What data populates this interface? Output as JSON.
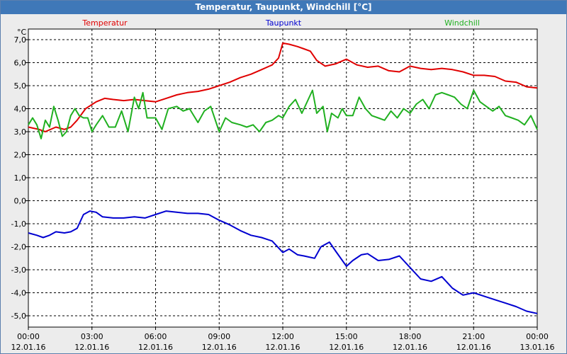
{
  "window": {
    "title": "Temperatur, Taupunkt, Windchill [°C]"
  },
  "chart_data": {
    "type": "line",
    "title": "Temperatur, Taupunkt, Windchill [°C]",
    "ylabel": "°C",
    "xlabel": "",
    "ylim": [
      -5.5,
      7.5
    ],
    "grid": true,
    "legend_placement": "top",
    "x_ticks": [
      {
        "time": "00:00",
        "date": "12.01.16",
        "hour": 0
      },
      {
        "time": "03:00",
        "date": "12.01.16",
        "hour": 3
      },
      {
        "time": "06:00",
        "date": "12.01.16",
        "hour": 6
      },
      {
        "time": "09:00",
        "date": "12.01.16",
        "hour": 9
      },
      {
        "time": "12:00",
        "date": "12.01.16",
        "hour": 12
      },
      {
        "time": "15:00",
        "date": "12.01.16",
        "hour": 15
      },
      {
        "time": "18:00",
        "date": "12.01.16",
        "hour": 18
      },
      {
        "time": "21:00",
        "date": "12.01.16",
        "hour": 21
      },
      {
        "time": "00:00",
        "date": "13.01.16",
        "hour": 24
      }
    ],
    "y_ticks": [
      {
        "label": "7,0",
        "value": 7
      },
      {
        "label": "6,0",
        "value": 6
      },
      {
        "label": "5,0",
        "value": 5
      },
      {
        "label": "4,0",
        "value": 4
      },
      {
        "label": "3,0",
        "value": 3
      },
      {
        "label": "2,0",
        "value": 2
      },
      {
        "label": "1,0",
        "value": 1
      },
      {
        "label": "0,0",
        "value": 0
      },
      {
        "label": "-1,0",
        "value": -1
      },
      {
        "label": "-2,0",
        "value": -2
      },
      {
        "label": "-3,0",
        "value": -3
      },
      {
        "label": "-4,0",
        "value": -4
      },
      {
        "label": "-5,0",
        "value": -5
      }
    ],
    "series": [
      {
        "name": "Temperatur",
        "color": "#e00000",
        "points": [
          [
            0,
            3.2
          ],
          [
            0.5,
            3.1
          ],
          [
            0.8,
            3.0
          ],
          [
            1.3,
            3.2
          ],
          [
            1.7,
            3.1
          ],
          [
            2.0,
            3.2
          ],
          [
            2.3,
            3.5
          ],
          [
            2.7,
            4.0
          ],
          [
            3.2,
            4.3
          ],
          [
            3.6,
            4.45
          ],
          [
            4.0,
            4.4
          ],
          [
            4.5,
            4.35
          ],
          [
            5.0,
            4.4
          ],
          [
            5.5,
            4.35
          ],
          [
            6.0,
            4.3
          ],
          [
            6.5,
            4.45
          ],
          [
            7.0,
            4.6
          ],
          [
            7.5,
            4.7
          ],
          [
            8.0,
            4.75
          ],
          [
            8.5,
            4.85
          ],
          [
            9.0,
            5.0
          ],
          [
            9.5,
            5.15
          ],
          [
            10.0,
            5.35
          ],
          [
            10.5,
            5.5
          ],
          [
            11.0,
            5.7
          ],
          [
            11.5,
            5.9
          ],
          [
            11.8,
            6.2
          ],
          [
            12.0,
            6.85
          ],
          [
            12.3,
            6.8
          ],
          [
            12.7,
            6.7
          ],
          [
            13.0,
            6.6
          ],
          [
            13.3,
            6.5
          ],
          [
            13.6,
            6.1
          ],
          [
            14.0,
            5.85
          ],
          [
            14.5,
            5.95
          ],
          [
            15.0,
            6.15
          ],
          [
            15.5,
            5.9
          ],
          [
            16.0,
            5.8
          ],
          [
            16.5,
            5.85
          ],
          [
            17.0,
            5.65
          ],
          [
            17.5,
            5.6
          ],
          [
            18.0,
            5.85
          ],
          [
            18.5,
            5.75
          ],
          [
            19.0,
            5.7
          ],
          [
            19.5,
            5.75
          ],
          [
            20.0,
            5.7
          ],
          [
            20.5,
            5.6
          ],
          [
            21.0,
            5.45
          ],
          [
            21.5,
            5.45
          ],
          [
            22.0,
            5.4
          ],
          [
            22.5,
            5.2
          ],
          [
            23.0,
            5.15
          ],
          [
            23.5,
            4.95
          ],
          [
            24.0,
            4.9
          ]
        ]
      },
      {
        "name": "Taupunkt",
        "color": "#0000d0",
        "points": [
          [
            0,
            -1.4
          ],
          [
            0.4,
            -1.5
          ],
          [
            0.7,
            -1.6
          ],
          [
            1.0,
            -1.5
          ],
          [
            1.3,
            -1.35
          ],
          [
            1.7,
            -1.4
          ],
          [
            2.0,
            -1.35
          ],
          [
            2.3,
            -1.2
          ],
          [
            2.6,
            -0.6
          ],
          [
            2.9,
            -0.45
          ],
          [
            3.2,
            -0.5
          ],
          [
            3.5,
            -0.7
          ],
          [
            4.0,
            -0.75
          ],
          [
            4.5,
            -0.75
          ],
          [
            5.0,
            -0.7
          ],
          [
            5.5,
            -0.75
          ],
          [
            6.0,
            -0.6
          ],
          [
            6.5,
            -0.45
          ],
          [
            7.0,
            -0.5
          ],
          [
            7.5,
            -0.55
          ],
          [
            8.0,
            -0.55
          ],
          [
            8.5,
            -0.6
          ],
          [
            9.0,
            -0.85
          ],
          [
            9.5,
            -1.05
          ],
          [
            10.0,
            -1.3
          ],
          [
            10.5,
            -1.5
          ],
          [
            11.0,
            -1.6
          ],
          [
            11.5,
            -1.75
          ],
          [
            12.0,
            -2.25
          ],
          [
            12.3,
            -2.1
          ],
          [
            12.7,
            -2.35
          ],
          [
            13.0,
            -2.4
          ],
          [
            13.5,
            -2.5
          ],
          [
            13.8,
            -2.0
          ],
          [
            14.2,
            -1.8
          ],
          [
            14.5,
            -2.2
          ],
          [
            15.0,
            -2.85
          ],
          [
            15.3,
            -2.6
          ],
          [
            15.7,
            -2.35
          ],
          [
            16.0,
            -2.3
          ],
          [
            16.5,
            -2.6
          ],
          [
            17.0,
            -2.55
          ],
          [
            17.5,
            -2.4
          ],
          [
            18.0,
            -2.9
          ],
          [
            18.5,
            -3.4
          ],
          [
            19.0,
            -3.5
          ],
          [
            19.5,
            -3.3
          ],
          [
            20.0,
            -3.8
          ],
          [
            20.5,
            -4.1
          ],
          [
            21.0,
            -4.0
          ],
          [
            21.5,
            -4.15
          ],
          [
            22.0,
            -4.3
          ],
          [
            22.5,
            -4.45
          ],
          [
            23.0,
            -4.6
          ],
          [
            23.5,
            -4.8
          ],
          [
            24.0,
            -4.9
          ]
        ]
      },
      {
        "name": "Windchill",
        "color": "#20b020",
        "points": [
          [
            0,
            3.3
          ],
          [
            0.2,
            3.6
          ],
          [
            0.4,
            3.3
          ],
          [
            0.6,
            2.7
          ],
          [
            0.8,
            3.5
          ],
          [
            1.0,
            3.2
          ],
          [
            1.2,
            4.1
          ],
          [
            1.4,
            3.5
          ],
          [
            1.6,
            2.8
          ],
          [
            1.8,
            3.0
          ],
          [
            2.0,
            3.7
          ],
          [
            2.2,
            4.0
          ],
          [
            2.4,
            3.7
          ],
          [
            2.6,
            3.6
          ],
          [
            2.8,
            3.6
          ],
          [
            3.0,
            3.0
          ],
          [
            3.2,
            3.3
          ],
          [
            3.5,
            3.7
          ],
          [
            3.8,
            3.2
          ],
          [
            4.1,
            3.2
          ],
          [
            4.4,
            3.9
          ],
          [
            4.7,
            3.0
          ],
          [
            5.0,
            4.5
          ],
          [
            5.2,
            4.0
          ],
          [
            5.4,
            4.7
          ],
          [
            5.6,
            3.6
          ],
          [
            6.0,
            3.6
          ],
          [
            6.3,
            3.1
          ],
          [
            6.6,
            4.0
          ],
          [
            7.0,
            4.1
          ],
          [
            7.3,
            3.9
          ],
          [
            7.6,
            4.0
          ],
          [
            8.0,
            3.4
          ],
          [
            8.3,
            3.9
          ],
          [
            8.6,
            4.1
          ],
          [
            9.0,
            3.0
          ],
          [
            9.3,
            3.6
          ],
          [
            9.6,
            3.4
          ],
          [
            10.0,
            3.3
          ],
          [
            10.3,
            3.2
          ],
          [
            10.6,
            3.3
          ],
          [
            10.9,
            3.0
          ],
          [
            11.2,
            3.4
          ],
          [
            11.5,
            3.5
          ],
          [
            11.8,
            3.7
          ],
          [
            12.0,
            3.6
          ],
          [
            12.3,
            4.1
          ],
          [
            12.6,
            4.4
          ],
          [
            12.9,
            3.8
          ],
          [
            13.1,
            4.2
          ],
          [
            13.4,
            4.8
          ],
          [
            13.6,
            3.8
          ],
          [
            13.9,
            4.1
          ],
          [
            14.1,
            3.0
          ],
          [
            14.3,
            3.8
          ],
          [
            14.6,
            3.6
          ],
          [
            14.8,
            4.0
          ],
          [
            15.0,
            3.7
          ],
          [
            15.3,
            3.7
          ],
          [
            15.6,
            4.5
          ],
          [
            15.9,
            4.0
          ],
          [
            16.2,
            3.7
          ],
          [
            16.5,
            3.6
          ],
          [
            16.8,
            3.5
          ],
          [
            17.1,
            3.9
          ],
          [
            17.4,
            3.6
          ],
          [
            17.7,
            4.0
          ],
          [
            18.0,
            3.8
          ],
          [
            18.3,
            4.2
          ],
          [
            18.6,
            4.4
          ],
          [
            18.9,
            4.0
          ],
          [
            19.2,
            4.6
          ],
          [
            19.5,
            4.7
          ],
          [
            19.8,
            4.6
          ],
          [
            20.1,
            4.5
          ],
          [
            20.4,
            4.2
          ],
          [
            20.7,
            4.0
          ],
          [
            21.0,
            4.8
          ],
          [
            21.3,
            4.3
          ],
          [
            21.6,
            4.1
          ],
          [
            21.9,
            3.9
          ],
          [
            22.2,
            4.1
          ],
          [
            22.5,
            3.7
          ],
          [
            22.8,
            3.6
          ],
          [
            23.1,
            3.5
          ],
          [
            23.4,
            3.3
          ],
          [
            23.7,
            3.7
          ],
          [
            24.0,
            3.1
          ]
        ]
      }
    ]
  }
}
